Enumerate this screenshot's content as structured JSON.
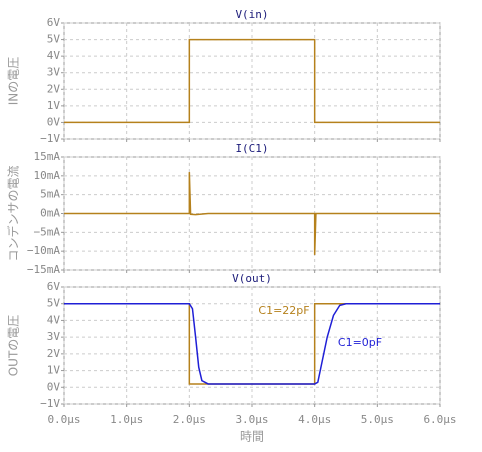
{
  "chart_data": [
    {
      "type": "line",
      "title": "V(in)",
      "y_label": "INの電圧",
      "xlim": [
        0,
        6
      ],
      "ylim": [
        -1,
        6
      ],
      "yticks": [
        {
          "value": 6,
          "label": "6V"
        },
        {
          "value": 5,
          "label": "5V"
        },
        {
          "value": 4,
          "label": "4V"
        },
        {
          "value": 3,
          "label": "3V"
        },
        {
          "value": 2,
          "label": "2V"
        },
        {
          "value": 1,
          "label": "1V"
        },
        {
          "value": 0,
          "label": "0V"
        },
        {
          "value": -1,
          "label": "−1V"
        }
      ],
      "grid": true,
      "series": [
        {
          "color": "#b5811c",
          "x": [
            0,
            2,
            2,
            4,
            4,
            6
          ],
          "values": [
            0,
            0,
            5,
            5,
            0,
            0
          ]
        }
      ]
    },
    {
      "type": "line",
      "title": "I(C1)",
      "y_label": "コンデンサの電流",
      "xlim": [
        0,
        6
      ],
      "ylim": [
        -15,
        15
      ],
      "yticks": [
        {
          "value": 15,
          "label": "15mA"
        },
        {
          "value": 10,
          "label": "10mA"
        },
        {
          "value": 5,
          "label": "5mA"
        },
        {
          "value": 0,
          "label": "0mA"
        },
        {
          "value": -5,
          "label": "−5mA"
        },
        {
          "value": -10,
          "label": "−10mA"
        },
        {
          "value": -15,
          "label": "−15mA"
        }
      ],
      "grid": true,
      "series": [
        {
          "color": "#b5811c",
          "x": [
            0,
            2,
            2,
            2.02,
            2.1,
            2.3,
            4,
            4,
            4.02,
            6
          ],
          "values": [
            0,
            0,
            11,
            -0.2,
            -0.3,
            0,
            0,
            -11,
            0,
            0
          ]
        }
      ]
    },
    {
      "type": "line",
      "title": "V(out)",
      "y_label": "OUTの電圧",
      "x_label": "時間",
      "xlim": [
        0,
        6
      ],
      "ylim": [
        -1,
        6
      ],
      "yticks": [
        {
          "value": 6,
          "label": "6V"
        },
        {
          "value": 5,
          "label": "5V"
        },
        {
          "value": 4,
          "label": "4V"
        },
        {
          "value": 3,
          "label": "3V"
        },
        {
          "value": 2,
          "label": "2V"
        },
        {
          "value": 1,
          "label": "1V"
        },
        {
          "value": 0,
          "label": "0V"
        },
        {
          "value": -1,
          "label": "−1V"
        }
      ],
      "xticks": [
        {
          "value": 0,
          "label": "0.0µs"
        },
        {
          "value": 1,
          "label": "1.0µs"
        },
        {
          "value": 2,
          "label": "2.0µs"
        },
        {
          "value": 3,
          "label": "3.0µs"
        },
        {
          "value": 4,
          "label": "4.0µs"
        },
        {
          "value": 5,
          "label": "5.0µs"
        },
        {
          "value": 6,
          "label": "6.0µs"
        }
      ],
      "grid": true,
      "series": [
        {
          "name": "C1=22pF",
          "color": "#b5811c",
          "x": [
            0,
            2,
            2,
            4,
            4,
            6
          ],
          "values": [
            5,
            5,
            0.2,
            0.2,
            5,
            5
          ]
        },
        {
          "name": "C1=0pF",
          "color": "#1f1fd6",
          "x": [
            0,
            2,
            2.05,
            2.1,
            2.15,
            2.2,
            2.3,
            4,
            4.05,
            4.1,
            4.2,
            4.3,
            4.4,
            4.5,
            6
          ],
          "values": [
            5,
            5,
            4.7,
            3,
            1.2,
            0.4,
            0.2,
            0.2,
            0.3,
            1.2,
            3,
            4.3,
            4.9,
            5,
            5
          ]
        }
      ]
    }
  ]
}
